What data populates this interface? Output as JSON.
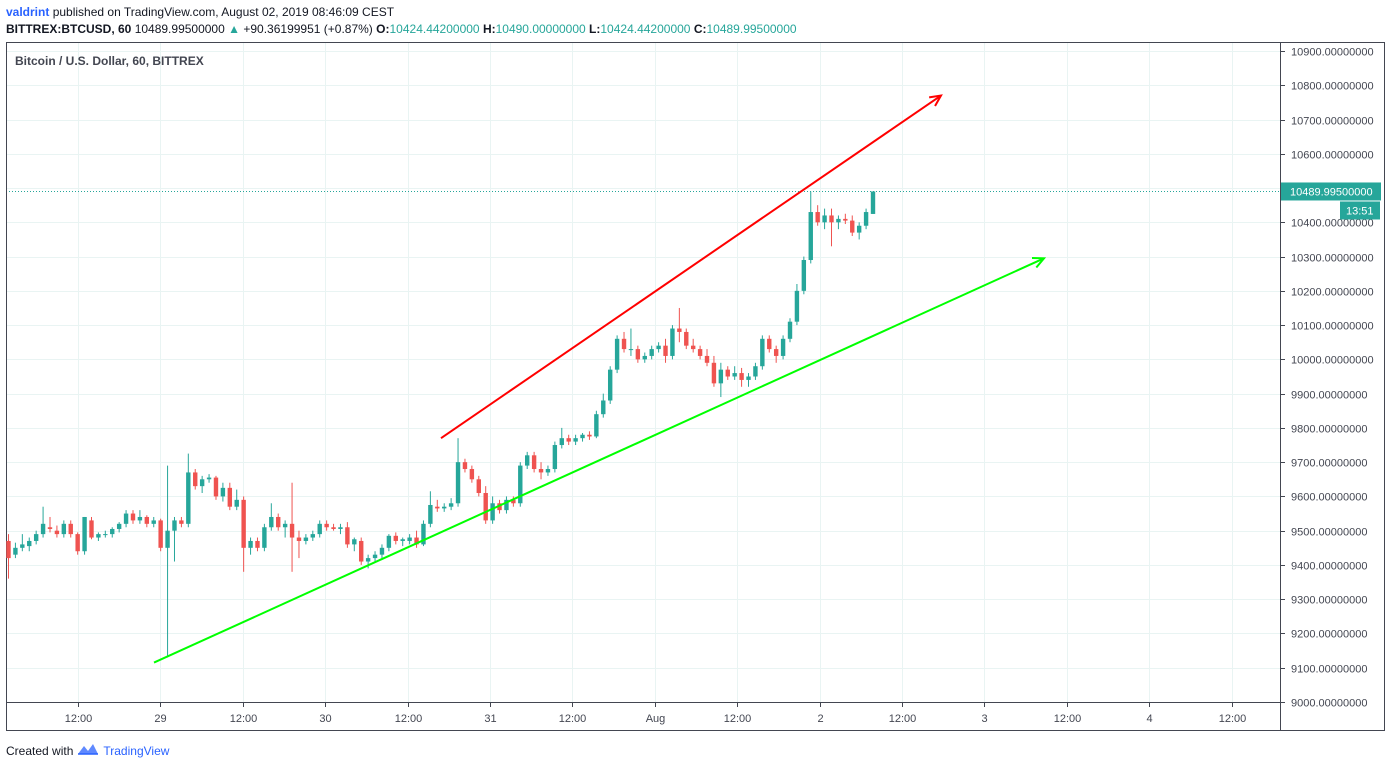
{
  "header": {
    "publisher_user": "valdrint",
    "publisher_text": "published on TradingView.com, August 02, 2019 08:46:09 CEST",
    "symbol": "BITTREX:BTCUSD, 60",
    "last": "10489.99500000",
    "arrow": "▲",
    "change": "+90.36199951 (+0.87%)",
    "o_label": "O:",
    "o_value": "10424.44200000",
    "h_label": "H:",
    "h_value": "10490.00000000",
    "l_label": "L:",
    "l_value": "10424.44200000",
    "c_label": "C:",
    "c_value": "10489.99500000"
  },
  "footer": {
    "created_with": "Created with",
    "brand": "TradingView",
    "logo_icon": "tradingview-logo-icon"
  },
  "colors": {
    "up": "#26a69a",
    "down": "#ef5350",
    "resistance": "#ff0000",
    "support": "#00ff00",
    "grid": "#e9f4f3",
    "price_tag": "#26a69a"
  },
  "chart_data": {
    "type": "candlestick",
    "title": "Bitcoin / U.S. Dollar, 60, BITTREX",
    "ylim": [
      9000,
      10900
    ],
    "y_ticks": [
      "10900.00000000",
      "10800.00000000",
      "10700.00000000",
      "10600.00000000",
      "10500.00000000",
      "10400.00000000",
      "10300.00000000",
      "10200.00000000",
      "10100.00000000",
      "10000.00000000",
      "9900.00000000",
      "9800.00000000",
      "9700.00000000",
      "9600.00000000",
      "9500.00000000",
      "9400.00000000",
      "9300.00000000",
      "9200.00000000",
      "9100.00000000",
      "9000.00000000"
    ],
    "x_ticks": [
      "12:00",
      "29",
      "12:00",
      "30",
      "12:00",
      "31",
      "12:00",
      "Aug",
      "12:00",
      "2",
      "12:00",
      "3",
      "12:00",
      "4",
      "12:00"
    ],
    "last_price_label": "10489.99500000",
    "countdown_label": "13:51",
    "last_price": 10489.995,
    "resistance_line": {
      "from": {
        "x": "Jul 30, 20:00",
        "y": 9770
      },
      "to": {
        "x": "Aug 2, 15:00",
        "y": 10770
      }
    },
    "support_line": {
      "from": {
        "x": "Jul 28, 21:00",
        "y": 9115
      },
      "to": {
        "x": "Aug 3, 04:00",
        "y": 10295
      }
    },
    "candles": [
      {
        "o": 9470,
        "h": 9490,
        "l": 9360,
        "c": 9420
      },
      {
        "o": 9430,
        "h": 9465,
        "l": 9420,
        "c": 9450
      },
      {
        "o": 9450,
        "h": 9490,
        "l": 9440,
        "c": 9460
      },
      {
        "o": 9455,
        "h": 9480,
        "l": 9440,
        "c": 9470
      },
      {
        "o": 9470,
        "h": 9500,
        "l": 9460,
        "c": 9490
      },
      {
        "o": 9490,
        "h": 9570,
        "l": 9480,
        "c": 9520
      },
      {
        "o": 9510,
        "h": 9540,
        "l": 9495,
        "c": 9505
      },
      {
        "o": 9500,
        "h": 9515,
        "l": 9480,
        "c": 9490
      },
      {
        "o": 9490,
        "h": 9530,
        "l": 9480,
        "c": 9520
      },
      {
        "o": 9520,
        "h": 9530,
        "l": 9480,
        "c": 9490
      },
      {
        "o": 9490,
        "h": 9495,
        "l": 9430,
        "c": 9440
      },
      {
        "o": 9440,
        "h": 9540,
        "l": 9430,
        "c": 9540
      },
      {
        "o": 9530,
        "h": 9540,
        "l": 9475,
        "c": 9480
      },
      {
        "o": 9480,
        "h": 9495,
        "l": 9470,
        "c": 9490
      },
      {
        "o": 9490,
        "h": 9500,
        "l": 9480,
        "c": 9490
      },
      {
        "o": 9490,
        "h": 9510,
        "l": 9480,
        "c": 9505
      },
      {
        "o": 9505,
        "h": 9525,
        "l": 9495,
        "c": 9520
      },
      {
        "o": 9520,
        "h": 9560,
        "l": 9510,
        "c": 9550
      },
      {
        "o": 9550,
        "h": 9560,
        "l": 9520,
        "c": 9530
      },
      {
        "o": 9530,
        "h": 9560,
        "l": 9520,
        "c": 9540
      },
      {
        "o": 9540,
        "h": 9545,
        "l": 9510,
        "c": 9520
      },
      {
        "o": 9520,
        "h": 9540,
        "l": 9510,
        "c": 9530
      },
      {
        "o": 9530,
        "h": 9535,
        "l": 9440,
        "c": 9450
      },
      {
        "o": 9450,
        "h": 9690,
        "l": 9130,
        "c": 9500
      },
      {
        "o": 9500,
        "h": 9540,
        "l": 9410,
        "c": 9530
      },
      {
        "o": 9530,
        "h": 9540,
        "l": 9510,
        "c": 9520
      },
      {
        "o": 9520,
        "h": 9725,
        "l": 9510,
        "c": 9670
      },
      {
        "o": 9670,
        "h": 9680,
        "l": 9620,
        "c": 9630
      },
      {
        "o": 9630,
        "h": 9660,
        "l": 9610,
        "c": 9650
      },
      {
        "o": 9650,
        "h": 9665,
        "l": 9640,
        "c": 9655
      },
      {
        "o": 9655,
        "h": 9660,
        "l": 9590,
        "c": 9600
      },
      {
        "o": 9600,
        "h": 9640,
        "l": 9585,
        "c": 9625
      },
      {
        "o": 9625,
        "h": 9640,
        "l": 9560,
        "c": 9570
      },
      {
        "o": 9570,
        "h": 9620,
        "l": 9560,
        "c": 9590
      },
      {
        "o": 9590,
        "h": 9600,
        "l": 9380,
        "c": 9450
      },
      {
        "o": 9450,
        "h": 9480,
        "l": 9430,
        "c": 9470
      },
      {
        "o": 9470,
        "h": 9480,
        "l": 9440,
        "c": 9450
      },
      {
        "o": 9450,
        "h": 9520,
        "l": 9440,
        "c": 9510
      },
      {
        "o": 9510,
        "h": 9580,
        "l": 9500,
        "c": 9540
      },
      {
        "o": 9540,
        "h": 9550,
        "l": 9500,
        "c": 9510
      },
      {
        "o": 9510,
        "h": 9530,
        "l": 9480,
        "c": 9520
      },
      {
        "o": 9520,
        "h": 9640,
        "l": 9380,
        "c": 9480
      },
      {
        "o": 9480,
        "h": 9500,
        "l": 9420,
        "c": 9470
      },
      {
        "o": 9470,
        "h": 9490,
        "l": 9460,
        "c": 9480
      },
      {
        "o": 9480,
        "h": 9500,
        "l": 9470,
        "c": 9490
      },
      {
        "o": 9490,
        "h": 9530,
        "l": 9480,
        "c": 9520
      },
      {
        "o": 9520,
        "h": 9530,
        "l": 9500,
        "c": 9510
      },
      {
        "o": 9510,
        "h": 9520,
        "l": 9500,
        "c": 9505
      },
      {
        "o": 9505,
        "h": 9520,
        "l": 9490,
        "c": 9510
      },
      {
        "o": 9510,
        "h": 9525,
        "l": 9450,
        "c": 9460
      },
      {
        "o": 9460,
        "h": 9480,
        "l": 9440,
        "c": 9475
      },
      {
        "o": 9470,
        "h": 9480,
        "l": 9400,
        "c": 9410
      },
      {
        "o": 9410,
        "h": 9430,
        "l": 9390,
        "c": 9420
      },
      {
        "o": 9420,
        "h": 9440,
        "l": 9410,
        "c": 9430
      },
      {
        "o": 9430,
        "h": 9460,
        "l": 9420,
        "c": 9450
      },
      {
        "o": 9450,
        "h": 9490,
        "l": 9440,
        "c": 9485
      },
      {
        "o": 9485,
        "h": 9495,
        "l": 9460,
        "c": 9470
      },
      {
        "o": 9470,
        "h": 9480,
        "l": 9455,
        "c": 9475
      },
      {
        "o": 9470,
        "h": 9490,
        "l": 9460,
        "c": 9480
      },
      {
        "o": 9480,
        "h": 9500,
        "l": 9450,
        "c": 9460
      },
      {
        "o": 9460,
        "h": 9530,
        "l": 9455,
        "c": 9520
      },
      {
        "o": 9520,
        "h": 9615,
        "l": 9510,
        "c": 9575
      },
      {
        "o": 9570,
        "h": 9590,
        "l": 9555,
        "c": 9565
      },
      {
        "o": 9565,
        "h": 9580,
        "l": 9555,
        "c": 9570
      },
      {
        "o": 9570,
        "h": 9595,
        "l": 9560,
        "c": 9580
      },
      {
        "o": 9580,
        "h": 9770,
        "l": 9570,
        "c": 9700
      },
      {
        "o": 9700,
        "h": 9710,
        "l": 9670,
        "c": 9680
      },
      {
        "o": 9680,
        "h": 9690,
        "l": 9640,
        "c": 9650
      },
      {
        "o": 9650,
        "h": 9660,
        "l": 9600,
        "c": 9610
      },
      {
        "o": 9610,
        "h": 9630,
        "l": 9520,
        "c": 9530
      },
      {
        "o": 9530,
        "h": 9600,
        "l": 9520,
        "c": 9580
      },
      {
        "o": 9580,
        "h": 9590,
        "l": 9550,
        "c": 9560
      },
      {
        "o": 9560,
        "h": 9600,
        "l": 9550,
        "c": 9590
      },
      {
        "o": 9590,
        "h": 9600,
        "l": 9570,
        "c": 9580
      },
      {
        "o": 9580,
        "h": 9700,
        "l": 9570,
        "c": 9690
      },
      {
        "o": 9690,
        "h": 9730,
        "l": 9680,
        "c": 9720
      },
      {
        "o": 9720,
        "h": 9730,
        "l": 9670,
        "c": 9680
      },
      {
        "o": 9680,
        "h": 9700,
        "l": 9650,
        "c": 9670
      },
      {
        "o": 9670,
        "h": 9690,
        "l": 9660,
        "c": 9680
      },
      {
        "o": 9680,
        "h": 9760,
        "l": 9670,
        "c": 9750
      },
      {
        "o": 9750,
        "h": 9800,
        "l": 9740,
        "c": 9770
      },
      {
        "o": 9770,
        "h": 9780,
        "l": 9750,
        "c": 9760
      },
      {
        "o": 9760,
        "h": 9780,
        "l": 9750,
        "c": 9770
      },
      {
        "o": 9770,
        "h": 9785,
        "l": 9760,
        "c": 9780
      },
      {
        "o": 9780,
        "h": 9790,
        "l": 9765,
        "c": 9775
      },
      {
        "o": 9775,
        "h": 9850,
        "l": 9770,
        "c": 9840
      },
      {
        "o": 9840,
        "h": 9900,
        "l": 9830,
        "c": 9880
      },
      {
        "o": 9880,
        "h": 9980,
        "l": 9870,
        "c": 9970
      },
      {
        "o": 9970,
        "h": 10070,
        "l": 9960,
        "c": 10060
      },
      {
        "o": 10060,
        "h": 10080,
        "l": 10020,
        "c": 10030
      },
      {
        "o": 10030,
        "h": 10090,
        "l": 10010,
        "c": 10030
      },
      {
        "o": 10030,
        "h": 10040,
        "l": 9990,
        "c": 10000
      },
      {
        "o": 10000,
        "h": 10020,
        "l": 9990,
        "c": 10010
      },
      {
        "o": 10010,
        "h": 10040,
        "l": 10000,
        "c": 10030
      },
      {
        "o": 10030,
        "h": 10050,
        "l": 10020,
        "c": 10040
      },
      {
        "o": 10040,
        "h": 10060,
        "l": 9990,
        "c": 10010
      },
      {
        "o": 10010,
        "h": 10100,
        "l": 10000,
        "c": 10090
      },
      {
        "o": 10090,
        "h": 10150,
        "l": 10050,
        "c": 10080
      },
      {
        "o": 10080,
        "h": 10090,
        "l": 10030,
        "c": 10040
      },
      {
        "o": 10040,
        "h": 10060,
        "l": 10020,
        "c": 10030
      },
      {
        "o": 10030,
        "h": 10040,
        "l": 10000,
        "c": 10010
      },
      {
        "o": 10010,
        "h": 10030,
        "l": 9980,
        "c": 9990
      },
      {
        "o": 9990,
        "h": 10010,
        "l": 9920,
        "c": 9930
      },
      {
        "o": 9930,
        "h": 9990,
        "l": 9890,
        "c": 9970
      },
      {
        "o": 9970,
        "h": 9980,
        "l": 9940,
        "c": 9950
      },
      {
        "o": 9950,
        "h": 9980,
        "l": 9940,
        "c": 9960
      },
      {
        "o": 9960,
        "h": 9975,
        "l": 9920,
        "c": 9940
      },
      {
        "o": 9940,
        "h": 9960,
        "l": 9920,
        "c": 9950
      },
      {
        "o": 9950,
        "h": 9990,
        "l": 9940,
        "c": 9980
      },
      {
        "o": 9980,
        "h": 10070,
        "l": 9970,
        "c": 10060
      },
      {
        "o": 10060,
        "h": 10070,
        "l": 10020,
        "c": 10030
      },
      {
        "o": 10030,
        "h": 10040,
        "l": 9990,
        "c": 10010
      },
      {
        "o": 10010,
        "h": 10070,
        "l": 10000,
        "c": 10060
      },
      {
        "o": 10060,
        "h": 10120,
        "l": 10050,
        "c": 10110
      },
      {
        "o": 10110,
        "h": 10220,
        "l": 10100,
        "c": 10200
      },
      {
        "o": 10200,
        "h": 10300,
        "l": 10190,
        "c": 10290
      },
      {
        "o": 10290,
        "h": 10490,
        "l": 10280,
        "c": 10430
      },
      {
        "o": 10430,
        "h": 10450,
        "l": 10390,
        "c": 10400
      },
      {
        "o": 10400,
        "h": 10440,
        "l": 10380,
        "c": 10420
      },
      {
        "o": 10420,
        "h": 10440,
        "l": 10330,
        "c": 10400
      },
      {
        "o": 10400,
        "h": 10420,
        "l": 10380,
        "c": 10410
      },
      {
        "o": 10410,
        "h": 10425,
        "l": 10395,
        "c": 10405
      },
      {
        "o": 10405,
        "h": 10420,
        "l": 10360,
        "c": 10370
      },
      {
        "o": 10370,
        "h": 10400,
        "l": 10350,
        "c": 10390
      },
      {
        "o": 10390,
        "h": 10440,
        "l": 10380,
        "c": 10430
      },
      {
        "o": 10424.442,
        "h": 10490,
        "l": 10424.442,
        "c": 10489.995
      }
    ]
  }
}
